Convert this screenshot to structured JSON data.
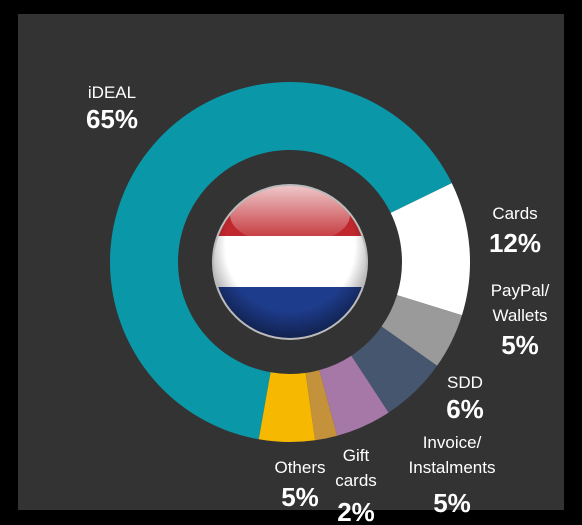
{
  "chart_data": {
    "type": "pie",
    "categories": [
      "iDEAL",
      "Cards",
      "PayPal/\nWallets",
      "SDD",
      "Invoice/\nInstalments",
      "Gift\ncards",
      "Others"
    ],
    "values": [
      65,
      12,
      5,
      6,
      5,
      2,
      5
    ],
    "value_labels": [
      "65%",
      "12%",
      "5%",
      "6%",
      "5%",
      "2%",
      "5%"
    ],
    "colors": [
      "#0a97a8",
      "#ffffff",
      "#9a9a9a",
      "#45566e",
      "#a678a8",
      "#c4923a",
      "#f6b800"
    ]
  }
}
